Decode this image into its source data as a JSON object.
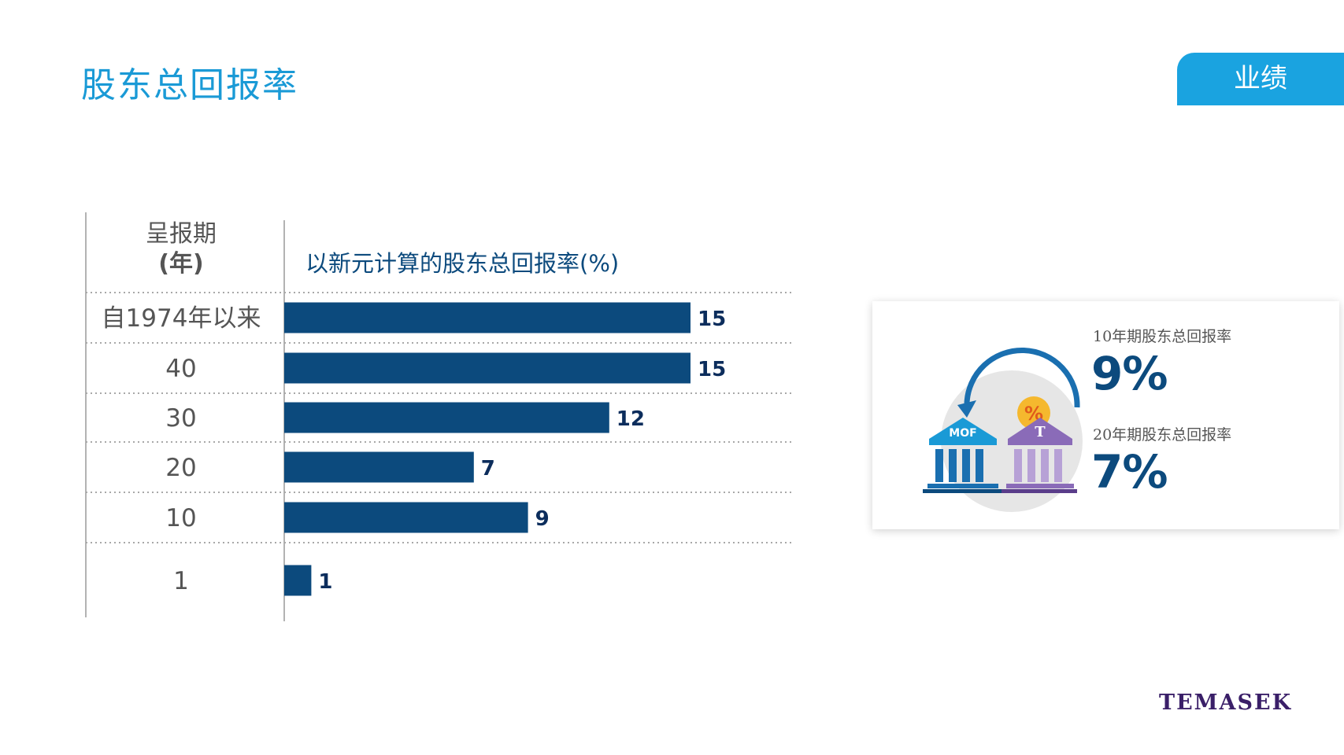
{
  "page": {
    "title": "股东总回报率",
    "section_tag": "业绩",
    "logo_text": "TEMASEK"
  },
  "chart_data": {
    "type": "bar",
    "orientation": "horizontal",
    "column_header": "呈报期\n(年)",
    "title": "以新元计算的股东总回报率(%)",
    "categories": [
      "自1974年以来",
      "40",
      "30",
      "20",
      "10",
      "1"
    ],
    "values": [
      15,
      15,
      12,
      7,
      9,
      1
    ],
    "bar_color": "#0c4a7d",
    "grid": "dotted row separators"
  },
  "stats": {
    "ten_year_label": "10年期股东总回报率",
    "ten_year_value": "9%",
    "twenty_year_label": "20年期股东总回报率",
    "twenty_year_value": "7%"
  },
  "icon": {
    "name": "mof-temasek-exchange-icon",
    "left_badge": "MOF",
    "right_badge": "T",
    "center_badge": "%"
  },
  "colors": {
    "title": "#1a9ad6",
    "tag_bg": "#1aa3e0",
    "bar": "#0c4a7d",
    "stat_value": "#0c4a7d",
    "logo": "#3a1f68"
  }
}
